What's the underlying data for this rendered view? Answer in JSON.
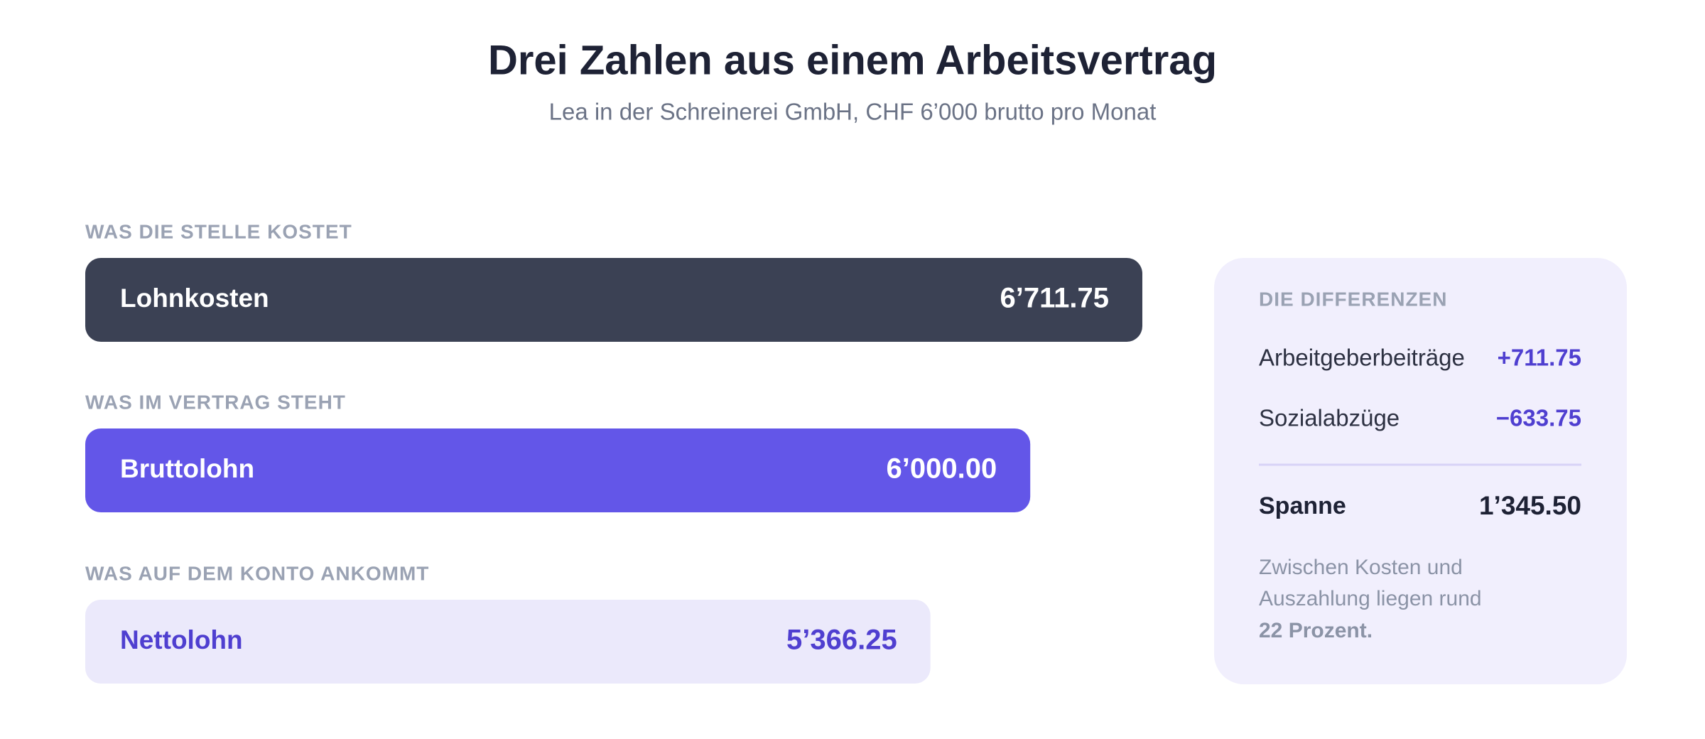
{
  "chart_data": {
    "type": "bar",
    "orientation": "horizontal",
    "title": "Drei Zahlen aus einem Arbeitsvertrag",
    "subtitle": "Lea in der Schreinerei GmbH, CHF 6’000 brutto pro Monat",
    "groups": [
      "WAS DIE STELLE KOSTET",
      "WAS IM VERTRAG STEHT",
      "WAS AUF DEM KONTO ANKOMMT"
    ],
    "categories": [
      "Lohnkosten",
      "Bruttolohn",
      "Nettolohn"
    ],
    "values": [
      6711.75,
      6000,
      5366.25
    ],
    "value_labels": [
      "6’711.75",
      "6’000.00",
      "5’366.25"
    ],
    "colors": [
      "#3b4154",
      "#6356e8",
      "#ebe9fb"
    ],
    "label_colors": [
      "#ffffff",
      "#ffffff",
      "#4f3fd0"
    ],
    "xlim": [
      0,
      6711.75
    ]
  },
  "panel": {
    "title": "DIE DIFFERENZEN",
    "rows": [
      {
        "label": "Arbeitgeberbeiträge",
        "value": "+711.75"
      },
      {
        "label": "Sozialabzüge",
        "value": "−633.75"
      }
    ],
    "total": {
      "label": "Spanne",
      "value": "1’345.50"
    },
    "note": [
      "Zwischen Kosten und",
      "Auszahlung liegen rund",
      "22 Prozent."
    ]
  }
}
